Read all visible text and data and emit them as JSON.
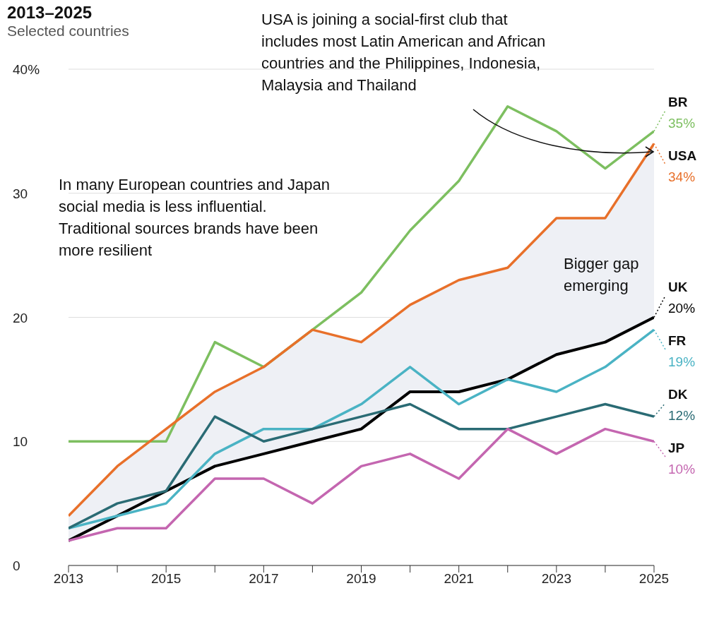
{
  "chart_data": {
    "type": "line",
    "title": "2013–2025",
    "subtitle": "Selected countries",
    "x": [
      2013,
      2014,
      2015,
      2016,
      2017,
      2018,
      2019,
      2020,
      2021,
      2022,
      2023,
      2024,
      2025
    ],
    "xlim": [
      2013,
      2025
    ],
    "xticks": [
      2013,
      {
        "value": 2014,
        "label": null
      },
      2015,
      {
        "value": 2016,
        "label": null
      },
      2017,
      {
        "value": 2018,
        "label": null
      },
      2019,
      {
        "value": 2020,
        "label": null
      },
      2021,
      {
        "value": 2022,
        "label": null
      },
      2023,
      {
        "value": 2024,
        "label": null
      },
      2025
    ],
    "ylim": [
      0,
      40
    ],
    "yticks": [
      0,
      10,
      20,
      30,
      {
        "value": 40,
        "label": "40%"
      }
    ],
    "grid": "y",
    "legend": false,
    "marker": "none",
    "line_style": "solid",
    "series": [
      {
        "name": "BR",
        "color": "#7dbf60",
        "values": [
          10,
          10,
          10,
          18,
          16,
          19,
          22,
          27,
          31,
          37,
          35,
          32,
          35
        ],
        "value_labels": [
          null,
          null,
          null,
          null,
          null,
          null,
          null,
          null,
          null,
          null,
          null,
          null,
          "35%"
        ]
      },
      {
        "name": "USA",
        "color": "#e8702a",
        "values": [
          4,
          8,
          11,
          14,
          16,
          19,
          18,
          21,
          23,
          24,
          28,
          28,
          34
        ],
        "value_labels": [
          null,
          null,
          null,
          null,
          null,
          null,
          null,
          null,
          null,
          null,
          null,
          null,
          "34%"
        ],
        "lower": [
          2,
          4,
          6,
          8,
          9,
          10,
          11,
          14,
          14,
          15,
          17,
          18,
          20
        ],
        "upper": [
          4,
          8,
          11,
          14,
          16,
          19,
          18,
          21,
          23,
          24,
          28,
          28,
          34
        ]
      },
      {
        "name": "UK",
        "color": "#000000",
        "values": [
          2,
          4,
          6,
          8,
          9,
          10,
          11,
          14,
          14,
          15,
          17,
          18,
          20
        ],
        "value_labels": [
          null,
          null,
          null,
          null,
          null,
          null,
          null,
          null,
          null,
          null,
          null,
          null,
          "20%"
        ]
      },
      {
        "name": "FR",
        "color": "#4ab3c4",
        "values": [
          3,
          4,
          5,
          9,
          11,
          11,
          13,
          16,
          13,
          15,
          14,
          16,
          19
        ],
        "value_labels": [
          null,
          null,
          null,
          null,
          null,
          null,
          null,
          null,
          null,
          null,
          null,
          null,
          "19%"
        ]
      },
      {
        "name": "DK",
        "color": "#2a6b74",
        "values": [
          3,
          5,
          6,
          12,
          10,
          11,
          12,
          13,
          11,
          11,
          12,
          13,
          12
        ],
        "value_labels": [
          null,
          null,
          null,
          null,
          null,
          null,
          null,
          null,
          null,
          null,
          null,
          null,
          "12%"
        ]
      },
      {
        "name": "JP",
        "color": "#c466b0",
        "values": [
          2,
          3,
          3,
          7,
          7,
          5,
          8,
          9,
          7,
          11,
          9,
          11,
          10
        ],
        "value_labels": [
          null,
          null,
          null,
          null,
          null,
          null,
          null,
          null,
          null,
          null,
          null,
          null,
          "10%"
        ]
      }
    ],
    "annotations": [
      "USA is joining a social-first club that includes most Latin American and African countries and the Philippines, Indonesia, Malaysia and Thailand",
      "In many European countries and Japan social media is less influential. Traditional sources brands have been more resilient",
      "Bigger gap emerging"
    ]
  }
}
